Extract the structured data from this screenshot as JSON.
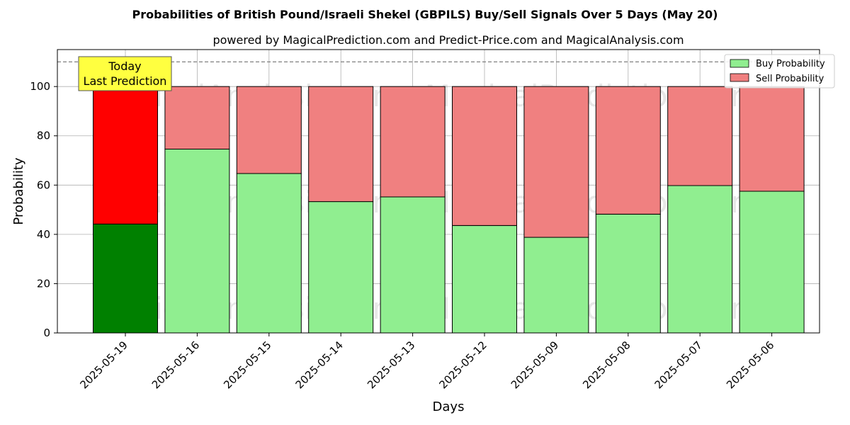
{
  "chart_data": {
    "type": "bar",
    "stacked": true,
    "title": "Probabilities of British Pound/Israeli Shekel (GBPILS) Buy/Sell Signals Over 5 Days (May 20)",
    "subtitle": "powered by MagicalPrediction.com and Predict-Price.com and MagicalAnalysis.com",
    "xlabel": "Days",
    "ylabel": "Probability",
    "ylim": [
      0,
      115
    ],
    "yticks": [
      0,
      20,
      40,
      60,
      80,
      100
    ],
    "grid": true,
    "legend_position": "top-right",
    "reference_line": 110,
    "categories": [
      "2025-05-19",
      "2025-05-16",
      "2025-05-15",
      "2025-05-14",
      "2025-05-13",
      "2025-05-12",
      "2025-05-09",
      "2025-05-08",
      "2025-05-07",
      "2025-05-06"
    ],
    "series": [
      {
        "name": "Buy Probability",
        "values": [
          44.2,
          74.6,
          64.7,
          53.3,
          55.2,
          43.6,
          38.8,
          48.2,
          59.8,
          57.5
        ]
      },
      {
        "name": "Sell Probability",
        "values": [
          55.8,
          25.4,
          35.3,
          46.7,
          44.8,
          56.4,
          61.2,
          51.8,
          40.2,
          42.5
        ]
      }
    ],
    "colors": {
      "buy": "#90ee90",
      "sell": "#f08080",
      "buy_today": "#008000",
      "sell_today": "#ff0000",
      "annotation_bg": "#ffff40"
    },
    "annotation": {
      "lines": [
        "Today",
        "Last Prediction"
      ]
    },
    "watermarks": [
      "MagicalAnalysis.com",
      "MagicalPrediction.com"
    ]
  }
}
